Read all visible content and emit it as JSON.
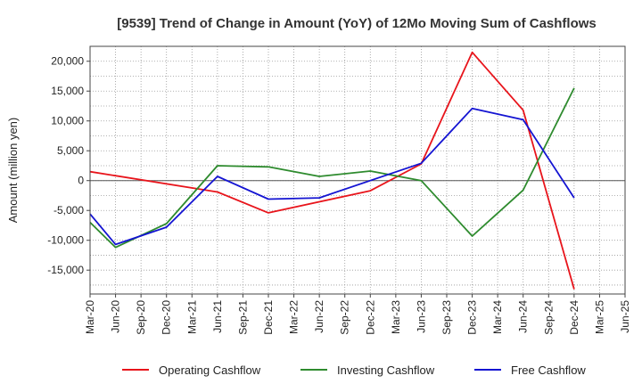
{
  "chart_data": {
    "type": "line",
    "title": "[9539]  Trend of Change in Amount (YoY) of 12Mo Moving Sum of Cashflows",
    "xlabel": "",
    "ylabel": "Amount (million yen)",
    "categories": [
      "Mar-20",
      "Jun-20",
      "Sep-20",
      "Dec-20",
      "Mar-21",
      "Jun-21",
      "Sep-21",
      "Dec-21",
      "Mar-22",
      "Jun-22",
      "Sep-22",
      "Dec-22",
      "Mar-23",
      "Jun-23",
      "Sep-23",
      "Dec-23",
      "Mar-24",
      "Jun-24",
      "Sep-24",
      "Dec-24",
      "Mar-25",
      "Jun-25"
    ],
    "ylim": [
      -19000,
      22500
    ],
    "yticks": [
      -15000,
      -10000,
      -5000,
      0,
      5000,
      10000,
      15000,
      20000
    ],
    "ytick_labels": [
      "-15,000",
      "-10,000",
      "-5,000",
      "0",
      "5,000",
      "10,000",
      "15,000",
      "20,000"
    ],
    "grid": true,
    "legend_position": "bottom",
    "series": [
      {
        "name": "Operating Cashflow",
        "color": "#e8141b",
        "values": [
          1500,
          null,
          null,
          null,
          null,
          -1900,
          null,
          -5400,
          null,
          null,
          null,
          -1700,
          null,
          2800,
          null,
          21500,
          null,
          11800,
          null,
          -18200,
          null,
          null
        ]
      },
      {
        "name": "Investing Cashflow",
        "color": "#2e8b2e",
        "values": [
          -7000,
          -11200,
          null,
          -7200,
          null,
          2500,
          null,
          2300,
          null,
          700,
          null,
          1600,
          null,
          0,
          null,
          -9300,
          null,
          -1600,
          null,
          15500,
          null,
          null
        ]
      },
      {
        "name": "Free Cashflow",
        "color": "#1414d2",
        "values": [
          -5600,
          -10700,
          null,
          -7800,
          null,
          700,
          null,
          -3100,
          null,
          -2900,
          null,
          null,
          null,
          2900,
          null,
          12100,
          null,
          10200,
          null,
          -2900,
          null,
          null
        ]
      }
    ]
  }
}
